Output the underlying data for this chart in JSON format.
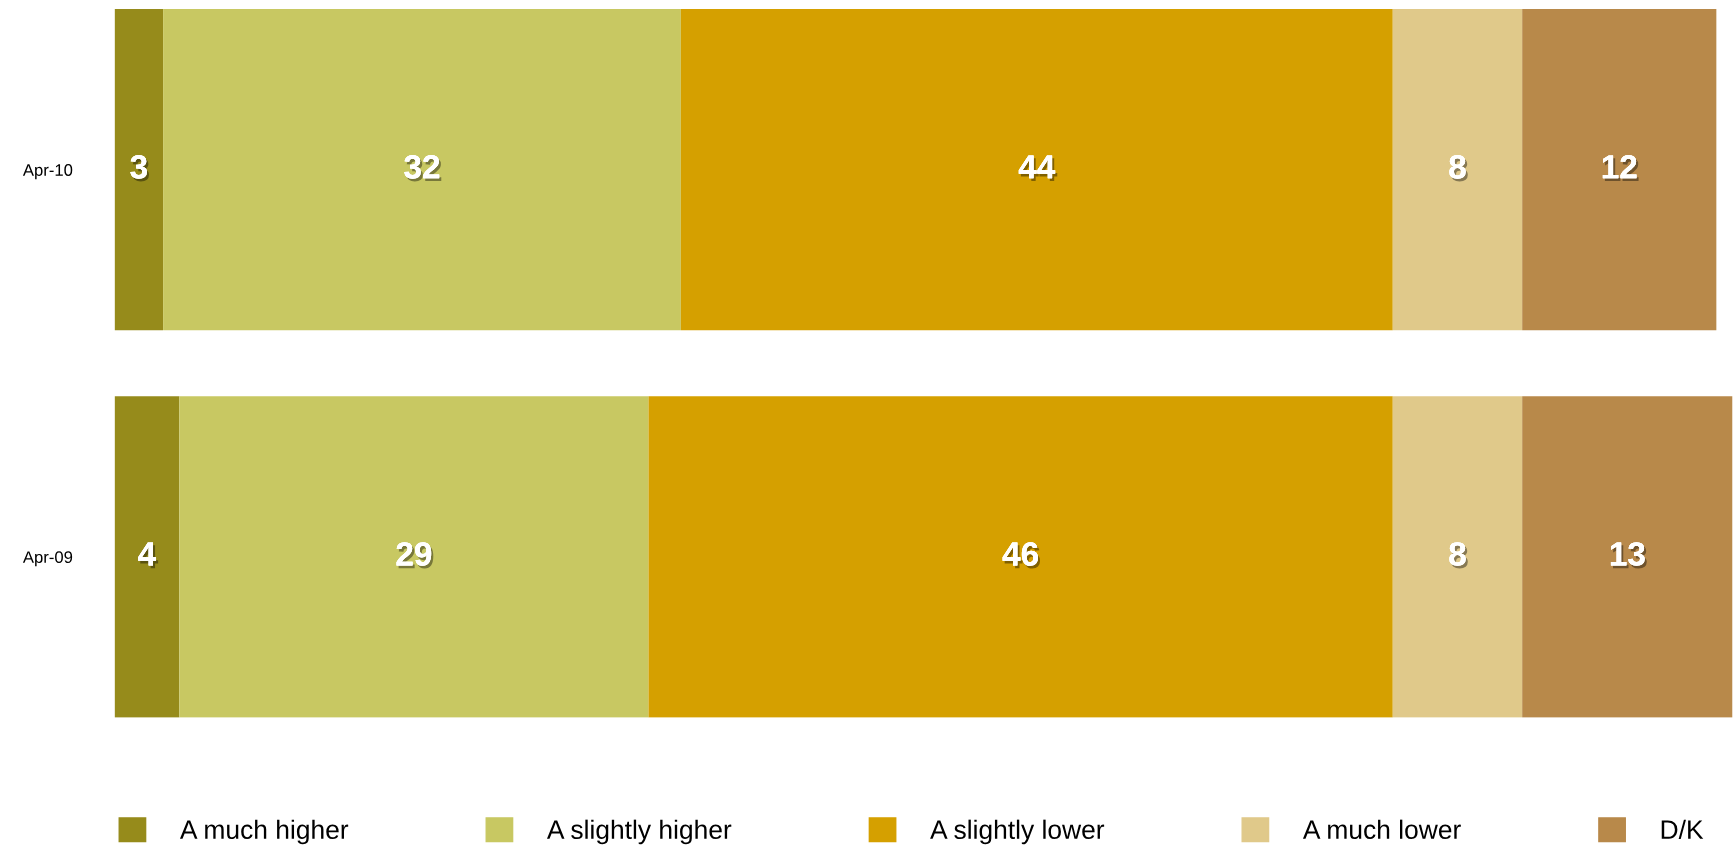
{
  "chart_data": {
    "type": "bar",
    "orientation": "horizontal",
    "stacked": true,
    "data_labels": true,
    "legend": "bottom",
    "grid": false,
    "categories": [
      "Apr-10",
      "Apr-09"
    ],
    "series": [
      {
        "name": "A much higher",
        "color": "#968b1b",
        "values": [
          3,
          4
        ]
      },
      {
        "name": "A slightly higher",
        "color": "#c8c862",
        "values": [
          32,
          29
        ]
      },
      {
        "name": "A slightly lower",
        "color": "#d5a000",
        "values": [
          44,
          46
        ]
      },
      {
        "name": "A much lower",
        "color": "#e0c98a",
        "values": [
          8,
          8
        ]
      },
      {
        "name": "D/K",
        "color": "#b8894a",
        "values": [
          12,
          13
        ]
      }
    ]
  }
}
